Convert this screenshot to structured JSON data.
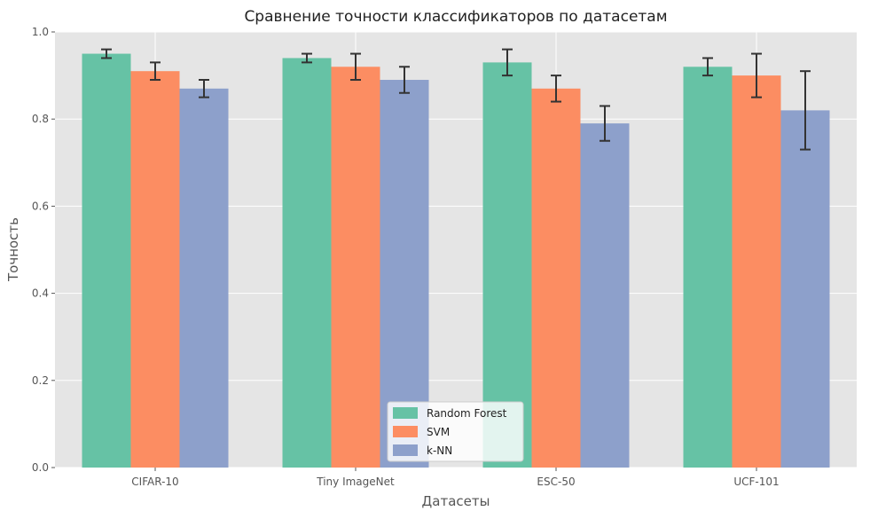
{
  "chart_data": {
    "type": "bar",
    "title": "Сравнение точности классификаторов по датасетам",
    "xlabel": "Датасеты",
    "ylabel": "Точность",
    "categories": [
      "CIFAR-10",
      "Tiny ImageNet",
      "ESC-50",
      "UCF-101"
    ],
    "ylim": [
      0,
      1.0
    ],
    "yticks": [
      "0.0",
      "0.2",
      "0.4",
      "0.6",
      "0.8",
      "1.0"
    ],
    "grid": true,
    "legend_position": "bottom-center",
    "series": [
      {
        "name": "Random Forest",
        "color": "#66c2a5",
        "values": [
          0.95,
          0.94,
          0.93,
          0.92
        ],
        "errors": [
          0.01,
          0.01,
          0.03,
          0.02
        ]
      },
      {
        "name": "SVM",
        "color": "#fc8d62",
        "values": [
          0.91,
          0.92,
          0.87,
          0.9
        ],
        "errors": [
          0.02,
          0.03,
          0.03,
          0.05
        ]
      },
      {
        "name": "k-NN",
        "color": "#8da0cb",
        "values": [
          0.87,
          0.89,
          0.79,
          0.82
        ],
        "errors": [
          0.02,
          0.03,
          0.04,
          0.09
        ]
      }
    ]
  }
}
